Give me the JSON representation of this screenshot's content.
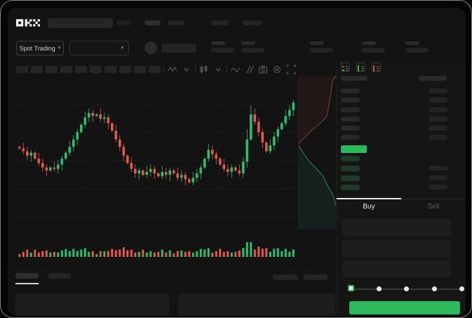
{
  "app": {
    "logo_label": "OKX",
    "colors": {
      "up_green": "#2dbd6e",
      "down_red": "#e05852",
      "accent_button_green": "#2eb85c",
      "active_tab_white": "#e8e8e8",
      "background": "#131313"
    }
  },
  "header": {
    "market_selector_label": "Spot Trading",
    "market_selector_chevron": "▾",
    "pair_selector_chevron": "▾",
    "nav_placeholder_count": 5,
    "stat_placeholder_count": 5
  },
  "toolbar": {
    "timeframe_placeholder_count": 10,
    "icons": [
      "zigzag-indicator-icon",
      "chevron-down-icon",
      "candle-style-icon",
      "chevron-down-icon",
      "line-chart-icon",
      "compare-icon",
      "camera-icon",
      "settings-icon",
      "fullscreen-icon"
    ]
  },
  "order_book": {
    "view_icons": [
      "book-both-sides-icon",
      "book-bids-only-icon",
      "book-asks-only-icon"
    ],
    "ask_row_count": 6,
    "bid_row_count": 4,
    "price_bar_color": "#2eb85c"
  },
  "trade_panel": {
    "buy_tab_label": "Buy",
    "sell_tab_label": "Sell",
    "field_count": 3,
    "slider": {
      "stop_count": 5,
      "active_stop_index": 0,
      "stop_percents": [
        0,
        25,
        50,
        75,
        100
      ]
    },
    "submit_button_color": "#2eb85c"
  },
  "bottom_bar": {
    "tab_placeholder_count": 2,
    "right_placeholder_count": 2,
    "active_tab_index": 0
  },
  "chart_data": {
    "type": "candlestick",
    "title": "",
    "xlabel": "",
    "ylabel": "",
    "axis_labels_visible": false,
    "grid": "faint horizontal and vertical lines",
    "price_units": "relative 0-100 (no labels rendered in UI)",
    "first_open": 58,
    "closes": [
      57,
      55,
      52,
      54,
      50,
      47,
      44,
      42,
      44,
      43,
      46,
      50,
      54,
      58,
      63,
      68,
      73,
      78,
      81,
      79,
      80,
      77,
      78,
      74,
      69,
      63,
      58,
      52,
      47,
      43,
      40,
      42,
      39,
      41,
      43,
      40,
      38,
      41,
      39,
      42,
      40,
      37,
      39,
      36,
      34,
      37,
      40,
      44,
      50,
      56,
      53,
      50,
      46,
      43,
      41,
      44,
      42,
      40,
      48,
      63,
      80,
      75,
      68,
      61,
      55,
      59,
      65,
      70,
      74,
      79,
      83,
      88
    ],
    "up_color": "#2dbd6e",
    "down_color": "#e05852",
    "volume": "sub-panel of red/green bars aligned with candles, height proportional to |close-open|",
    "depth": {
      "description": "sideways depth chart between candles and order book; asks shaded red above mid, bids shaded teal below mid",
      "asks_curve": [
        [
          53,
          0
        ],
        [
          48,
          8
        ],
        [
          46,
          25
        ],
        [
          40,
          58
        ],
        [
          30,
          68
        ],
        [
          18,
          78
        ],
        [
          8,
          88
        ],
        [
          2,
          94
        ],
        [
          0,
          98
        ]
      ],
      "bids_curve": [
        [
          0,
          100
        ],
        [
          8,
          112
        ],
        [
          15,
          122
        ],
        [
          25,
          132
        ],
        [
          34,
          142
        ],
        [
          42,
          158
        ],
        [
          48,
          168
        ],
        [
          51,
          176
        ],
        [
          53,
          185
        ]
      ],
      "ask_fill": "rgba(170,60,55,0.10)",
      "bid_fill": "rgba(40,150,125,0.10)"
    }
  }
}
